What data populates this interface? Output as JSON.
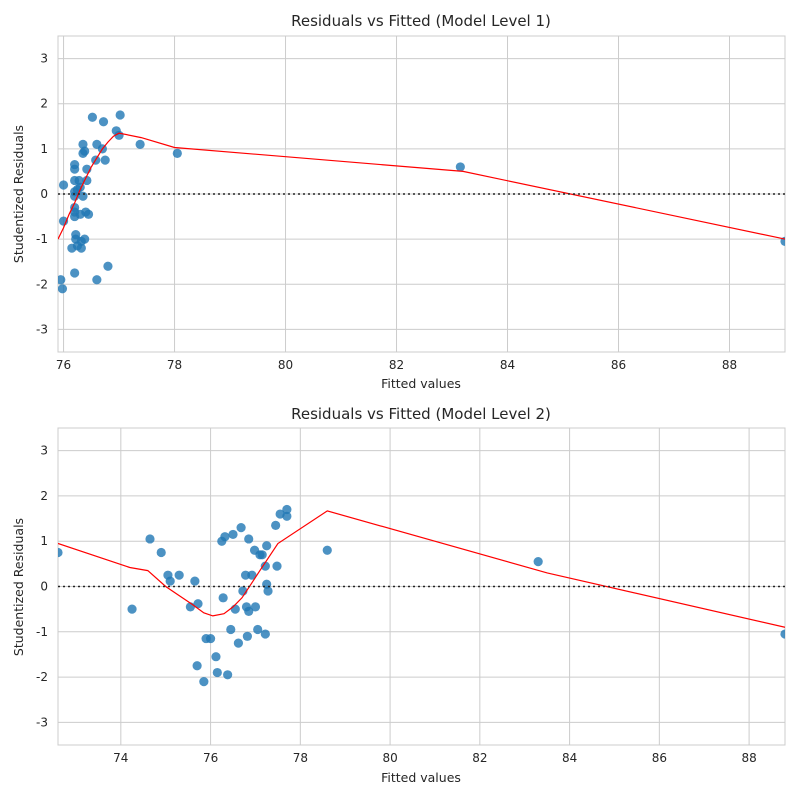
{
  "chart_data": [
    {
      "type": "scatter",
      "title": "Residuals vs Fitted (Model Level 1)",
      "xlabel": "Fitted values",
      "ylabel": "Studentized Residuals",
      "xlim": [
        75.9,
        89.0
      ],
      "ylim": [
        -3.5,
        3.5
      ],
      "xticks": [
        76,
        78,
        80,
        82,
        84,
        86,
        88
      ],
      "yticks": [
        -3,
        -2,
        -1,
        0,
        1,
        2,
        3
      ],
      "grid": true,
      "reference_line_y": 0,
      "colors": {
        "points": "#1f77b4",
        "lowess": "#ff0000",
        "reference": "#222222"
      },
      "points": [
        [
          76.0,
          0.2
        ],
        [
          76.0,
          -0.6
        ],
        [
          75.95,
          -1.9
        ],
        [
          75.98,
          -2.1
        ],
        [
          76.2,
          0.65
        ],
        [
          76.2,
          0.55
        ],
        [
          76.2,
          0.3
        ],
        [
          76.2,
          0.05
        ],
        [
          76.2,
          -0.05
        ],
        [
          76.2,
          -0.3
        ],
        [
          76.2,
          -0.4
        ],
        [
          76.2,
          -0.5
        ],
        [
          76.22,
          -0.9
        ],
        [
          76.22,
          -1.0
        ],
        [
          76.15,
          -1.2
        ],
        [
          76.2,
          -1.75
        ],
        [
          76.25,
          -1.15
        ],
        [
          76.25,
          0.1
        ],
        [
          76.28,
          0.3
        ],
        [
          76.3,
          0.15
        ],
        [
          76.3,
          -0.45
        ],
        [
          76.32,
          -1.05
        ],
        [
          76.32,
          -1.2
        ],
        [
          76.35,
          1.1
        ],
        [
          76.35,
          0.9
        ],
        [
          76.35,
          -0.05
        ],
        [
          76.38,
          -1.0
        ],
        [
          76.38,
          0.95
        ],
        [
          76.4,
          -0.4
        ],
        [
          76.42,
          0.55
        ],
        [
          76.42,
          0.3
        ],
        [
          76.45,
          -0.45
        ],
        [
          76.52,
          1.7
        ],
        [
          76.58,
          0.75
        ],
        [
          76.6,
          1.1
        ],
        [
          76.6,
          -1.9
        ],
        [
          76.7,
          1.0
        ],
        [
          76.72,
          1.6
        ],
        [
          76.75,
          0.75
        ],
        [
          76.8,
          -1.6
        ],
        [
          76.95,
          1.4
        ],
        [
          77.0,
          1.3
        ],
        [
          77.02,
          1.75
        ],
        [
          77.38,
          1.1
        ],
        [
          78.05,
          0.9
        ],
        [
          83.15,
          0.6
        ],
        [
          89.0,
          -1.05
        ]
      ],
      "lowess": [
        [
          75.9,
          -1.0
        ],
        [
          76.0,
          -0.75
        ],
        [
          76.1,
          -0.45
        ],
        [
          76.2,
          -0.2
        ],
        [
          76.3,
          0.1
        ],
        [
          76.4,
          0.35
        ],
        [
          76.5,
          0.6
        ],
        [
          76.6,
          0.8
        ],
        [
          76.7,
          1.0
        ],
        [
          76.8,
          1.15
        ],
        [
          76.9,
          1.28
        ],
        [
          77.0,
          1.35
        ],
        [
          77.4,
          1.25
        ],
        [
          78.0,
          1.03
        ],
        [
          83.2,
          0.5
        ],
        [
          89.0,
          -1.0
        ]
      ]
    },
    {
      "type": "scatter",
      "title": "Residuals vs Fitted (Model Level 2)",
      "xlabel": "Fitted values",
      "ylabel": "Studentized Residuals",
      "xlim": [
        72.6,
        88.8
      ],
      "ylim": [
        -3.5,
        3.5
      ],
      "xticks": [
        74,
        76,
        78,
        80,
        82,
        84,
        86,
        88
      ],
      "yticks": [
        -3,
        -2,
        -1,
        0,
        1,
        2,
        3
      ],
      "grid": true,
      "reference_line_y": 0,
      "colors": {
        "points": "#1f77b4",
        "lowess": "#ff0000",
        "reference": "#222222"
      },
      "points": [
        [
          72.6,
          0.75
        ],
        [
          74.25,
          -0.5
        ],
        [
          74.65,
          1.05
        ],
        [
          74.9,
          0.75
        ],
        [
          75.05,
          0.25
        ],
        [
          75.1,
          0.12
        ],
        [
          75.3,
          0.25
        ],
        [
          75.55,
          -0.45
        ],
        [
          75.65,
          0.12
        ],
        [
          75.72,
          -0.38
        ],
        [
          75.7,
          -1.75
        ],
        [
          75.85,
          -2.1
        ],
        [
          75.9,
          -1.15
        ],
        [
          76.0,
          -1.15
        ],
        [
          76.12,
          -1.55
        ],
        [
          76.15,
          -1.9
        ],
        [
          76.25,
          1.0
        ],
        [
          76.28,
          -0.25
        ],
        [
          76.32,
          1.1
        ],
        [
          76.38,
          -1.95
        ],
        [
          76.45,
          -0.95
        ],
        [
          76.5,
          1.15
        ],
        [
          76.55,
          -0.5
        ],
        [
          76.62,
          -1.25
        ],
        [
          76.68,
          1.3
        ],
        [
          76.72,
          -0.1
        ],
        [
          76.78,
          0.25
        ],
        [
          76.8,
          -0.45
        ],
        [
          76.82,
          -1.1
        ],
        [
          76.85,
          1.05
        ],
        [
          76.85,
          -0.55
        ],
        [
          76.92,
          0.25
        ],
        [
          76.98,
          0.8
        ],
        [
          77.0,
          -0.45
        ],
        [
          77.05,
          -0.95
        ],
        [
          77.1,
          0.7
        ],
        [
          77.15,
          0.7
        ],
        [
          77.22,
          -1.05
        ],
        [
          77.22,
          0.45
        ],
        [
          77.25,
          0.9
        ],
        [
          77.25,
          0.05
        ],
        [
          77.28,
          -0.1
        ],
        [
          77.45,
          1.35
        ],
        [
          77.48,
          0.45
        ],
        [
          77.55,
          1.6
        ],
        [
          77.7,
          1.55
        ],
        [
          77.7,
          1.7
        ],
        [
          78.6,
          0.8
        ],
        [
          83.3,
          0.55
        ],
        [
          88.8,
          -1.05
        ]
      ],
      "lowess": [
        [
          72.6,
          0.95
        ],
        [
          74.2,
          0.42
        ],
        [
          74.6,
          0.35
        ],
        [
          75.0,
          0.0
        ],
        [
          75.3,
          -0.2
        ],
        [
          75.6,
          -0.4
        ],
        [
          75.85,
          -0.58
        ],
        [
          76.05,
          -0.65
        ],
        [
          76.3,
          -0.6
        ],
        [
          76.5,
          -0.45
        ],
        [
          76.7,
          -0.25
        ],
        [
          76.9,
          0.05
        ],
        [
          77.1,
          0.35
        ],
        [
          77.3,
          0.65
        ],
        [
          77.5,
          0.95
        ],
        [
          78.6,
          1.67
        ],
        [
          83.5,
          0.3
        ],
        [
          88.8,
          -0.9
        ]
      ]
    }
  ]
}
